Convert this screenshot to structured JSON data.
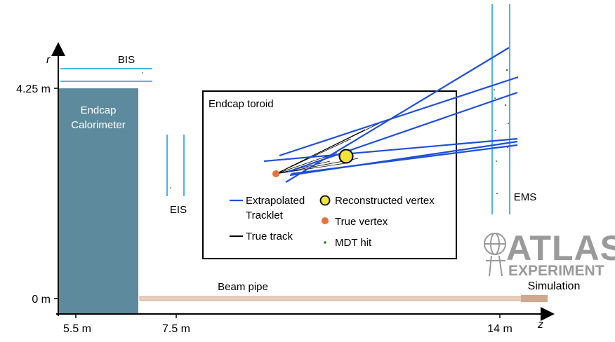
{
  "axes": {
    "r_label": "r",
    "z_label": "z",
    "r_ticks": [
      {
        "label": "4.25 m"
      },
      {
        "label": "0 m"
      }
    ],
    "z_ticks": [
      {
        "label": "5.5 m"
      },
      {
        "label": "7.5 m"
      },
      {
        "label": "14 m"
      }
    ]
  },
  "detectors": {
    "calorimeter": {
      "line1": "Endcap",
      "line2": "Calorimeter",
      "color": "#5d8a9d"
    },
    "bis": "BIS",
    "eis": "EIS",
    "ems": "EMS",
    "beam_pipe": "Beam pipe",
    "chamber_color": "#4fb3e3",
    "beam_pipe_color": "#d9b39a"
  },
  "inset": {
    "title": "Endcap toroid",
    "legend": {
      "extrapolated_line1": "Extrapolated",
      "extrapolated_line2": "Tracklet",
      "true_track": "True track",
      "reco_vertex": "Reconstructed vertex",
      "true_vertex": "True vertex",
      "mdt_hit": "MDT hit"
    }
  },
  "colors": {
    "tracklet": "#1f4fd6",
    "true_track": "#000000",
    "reco_vertex_fill": "#f2e23a",
    "true_vertex": "#e7733a",
    "mdt_hit": "#2e7d1e"
  },
  "logo": {
    "main": "ATLAS",
    "sub": "EXPERIMENT",
    "tag": "Simulation"
  }
}
